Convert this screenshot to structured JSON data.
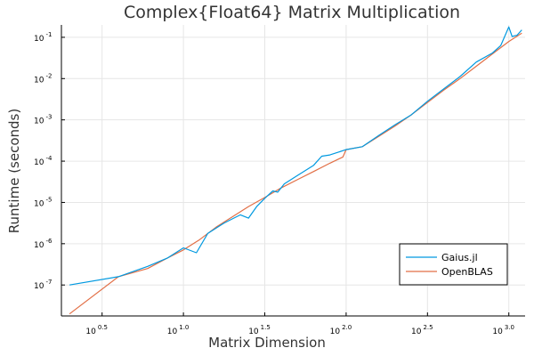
{
  "chart_data": {
    "type": "line",
    "title": "Complex{Float64} Matrix Multiplication",
    "xlabel": "Matrix Dimension",
    "ylabel": "Runtime (seconds)",
    "x_scale": "log10",
    "y_scale": "log10",
    "xlim_log10": [
      0.25,
      3.1
    ],
    "ylim_log10": [
      -7.75,
      -0.7
    ],
    "x_ticks": [
      {
        "base": "10",
        "exp": "0.5",
        "value": 0.5
      },
      {
        "base": "10",
        "exp": "1.0",
        "value": 1.0
      },
      {
        "base": "10",
        "exp": "1.5",
        "value": 1.5
      },
      {
        "base": "10",
        "exp": "2.0",
        "value": 2.0
      },
      {
        "base": "10",
        "exp": "2.5",
        "value": 2.5
      },
      {
        "base": "10",
        "exp": "3.0",
        "value": 3.0
      }
    ],
    "y_ticks": [
      {
        "base": "10",
        "exp": "-7",
        "value": -7
      },
      {
        "base": "10",
        "exp": "-6",
        "value": -6
      },
      {
        "base": "10",
        "exp": "-5",
        "value": -5
      },
      {
        "base": "10",
        "exp": "-4",
        "value": -4
      },
      {
        "base": "10",
        "exp": "-3",
        "value": -3
      },
      {
        "base": "10",
        "exp": "-2",
        "value": -2
      },
      {
        "base": "10",
        "exp": "-1",
        "value": -1
      }
    ],
    "grid": true,
    "legend_position": "bottom-right",
    "series": [
      {
        "name": "Gaius.jl",
        "color": "#0099e0",
        "log10_x": [
          0.3,
          0.6,
          0.78,
          0.9,
          1.0,
          1.08,
          1.15,
          1.25,
          1.35,
          1.4,
          1.45,
          1.5,
          1.55,
          1.58,
          1.62,
          1.7,
          1.8,
          1.85,
          1.9,
          2.0,
          2.1,
          2.2,
          2.3,
          2.4,
          2.5,
          2.6,
          2.7,
          2.8,
          2.9,
          2.95,
          3.0,
          3.02,
          3.05,
          3.08
        ],
        "log10_y": [
          -7.0,
          -6.8,
          -6.55,
          -6.35,
          -6.1,
          -6.22,
          -5.75,
          -5.5,
          -5.3,
          -5.38,
          -5.1,
          -4.9,
          -4.72,
          -4.75,
          -4.55,
          -4.35,
          -4.1,
          -3.88,
          -3.85,
          -3.72,
          -3.65,
          -3.38,
          -3.12,
          -2.88,
          -2.55,
          -2.25,
          -1.95,
          -1.6,
          -1.38,
          -1.2,
          -0.75,
          -0.98,
          -0.95,
          -0.82
        ]
      },
      {
        "name": "OpenBLAS",
        "color": "#e26f46",
        "log10_x": [
          0.3,
          0.6,
          0.78,
          0.9,
          1.0,
          1.1,
          1.2,
          1.3,
          1.4,
          1.5,
          1.6,
          1.7,
          1.8,
          1.9,
          1.98,
          2.0,
          2.1,
          2.2,
          2.3,
          2.4,
          2.5,
          2.6,
          2.7,
          2.8,
          2.9,
          3.0,
          3.08
        ],
        "log10_y": [
          -7.7,
          -6.8,
          -6.6,
          -6.35,
          -6.15,
          -5.9,
          -5.6,
          -5.35,
          -5.1,
          -4.88,
          -4.65,
          -4.45,
          -4.25,
          -4.05,
          -3.9,
          -3.72,
          -3.65,
          -3.4,
          -3.15,
          -2.88,
          -2.58,
          -2.28,
          -2.0,
          -1.7,
          -1.4,
          -1.1,
          -0.9
        ]
      }
    ]
  }
}
